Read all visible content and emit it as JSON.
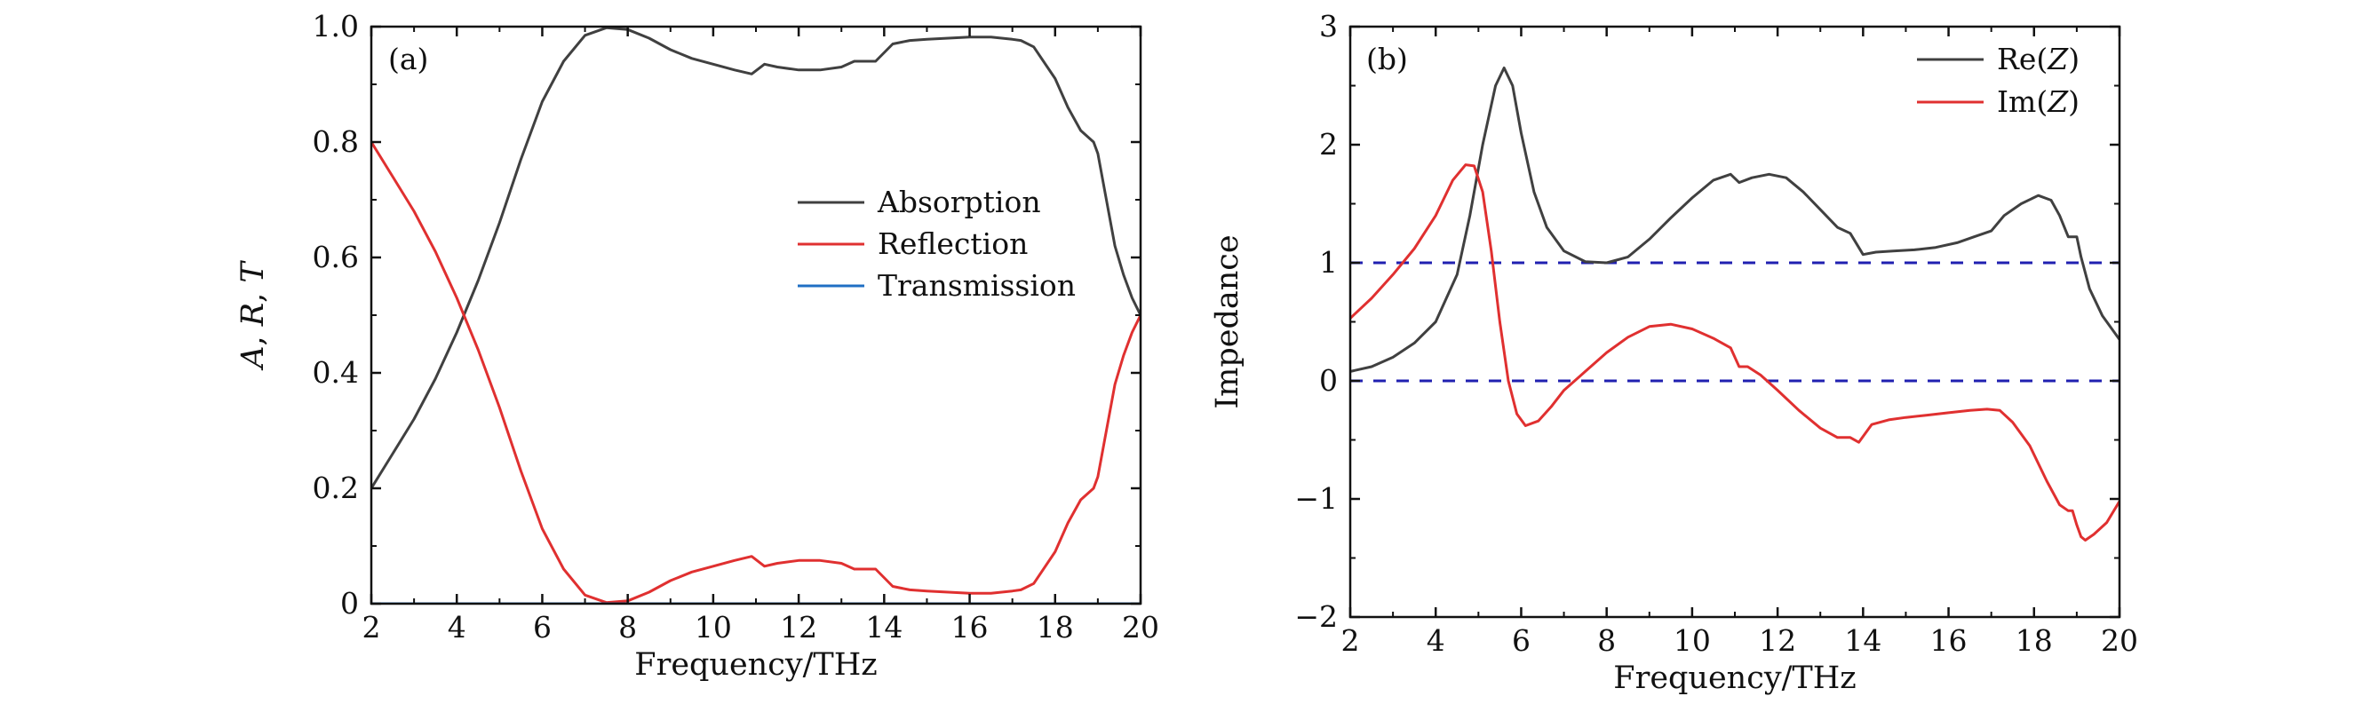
{
  "chart_data": [
    {
      "type": "line",
      "panel_label": "(a)",
      "xlabel": "Frequency/THz",
      "ylabel": "A, R, T",
      "xlim": [
        2,
        20
      ],
      "ylim": [
        0,
        1
      ],
      "xticks": [
        2,
        4,
        6,
        8,
        10,
        12,
        14,
        16,
        18,
        20
      ],
      "yticks": [
        0,
        0.2,
        0.4,
        0.6,
        0.8,
        1.0
      ],
      "ytick_labels": [
        "0",
        "0.2",
        "0.4",
        "0.6",
        "0.8",
        "1.0"
      ],
      "legend_position": "center-right",
      "series": [
        {
          "name": "Absorption",
          "color": "#404040",
          "x": [
            2,
            2.5,
            3,
            3.5,
            4,
            4.5,
            5,
            5.5,
            6,
            6.5,
            7,
            7.5,
            8,
            8.5,
            9,
            9.5,
            10,
            10.5,
            10.9,
            11.2,
            11.5,
            12,
            12.5,
            13,
            13.3,
            13.6,
            13.8,
            14.2,
            14.6,
            15,
            15.5,
            16,
            16.5,
            17,
            17.2,
            17.5,
            18,
            18.3,
            18.6,
            18.9,
            19.0,
            19.2,
            19.4,
            19.6,
            19.8,
            20
          ],
          "y": [
            0.2,
            0.26,
            0.32,
            0.39,
            0.47,
            0.56,
            0.66,
            0.77,
            0.87,
            0.94,
            0.985,
            0.998,
            0.995,
            0.98,
            0.96,
            0.945,
            0.935,
            0.925,
            0.918,
            0.935,
            0.93,
            0.925,
            0.925,
            0.93,
            0.94,
            0.94,
            0.94,
            0.97,
            0.976,
            0.978,
            0.98,
            0.982,
            0.982,
            0.978,
            0.976,
            0.965,
            0.91,
            0.86,
            0.82,
            0.8,
            0.78,
            0.7,
            0.62,
            0.57,
            0.53,
            0.5
          ]
        },
        {
          "name": "Reflection",
          "color": "#e03030",
          "x": [
            2,
            2.5,
            3,
            3.5,
            4,
            4.5,
            5,
            5.5,
            6,
            6.5,
            7,
            7.5,
            8,
            8.5,
            9,
            9.5,
            10,
            10.5,
            10.9,
            11.2,
            11.5,
            12,
            12.5,
            13,
            13.3,
            13.6,
            13.8,
            14.2,
            14.6,
            15,
            15.5,
            16,
            16.5,
            17,
            17.2,
            17.5,
            18,
            18.3,
            18.6,
            18.9,
            19.0,
            19.2,
            19.4,
            19.6,
            19.8,
            20
          ],
          "y": [
            0.8,
            0.74,
            0.68,
            0.61,
            0.53,
            0.44,
            0.34,
            0.23,
            0.13,
            0.06,
            0.015,
            0.002,
            0.005,
            0.02,
            0.04,
            0.055,
            0.065,
            0.075,
            0.082,
            0.065,
            0.07,
            0.075,
            0.075,
            0.07,
            0.06,
            0.06,
            0.06,
            0.03,
            0.024,
            0.022,
            0.02,
            0.018,
            0.018,
            0.022,
            0.024,
            0.035,
            0.09,
            0.14,
            0.18,
            0.2,
            0.22,
            0.3,
            0.38,
            0.43,
            0.47,
            0.5
          ]
        },
        {
          "name": "Transmission",
          "color": "#1f6fc4",
          "x": [
            2,
            20
          ],
          "y": [
            0,
            0
          ]
        }
      ]
    },
    {
      "type": "line",
      "panel_label": "(b)",
      "xlabel": "Frequency/THz",
      "ylabel": "Impedance",
      "xlim": [
        2,
        20
      ],
      "ylim": [
        -2,
        3
      ],
      "xticks": [
        2,
        4,
        6,
        8,
        10,
        12,
        14,
        16,
        18,
        20
      ],
      "yticks": [
        -2,
        -1,
        0,
        1,
        2,
        3
      ],
      "ytick_labels": [
        "−2",
        "−1",
        "0",
        "1",
        "2",
        "3"
      ],
      "reference_lines": [
        1,
        0
      ],
      "reference_color": "#2020b0",
      "legend_position": "top-right",
      "series": [
        {
          "name": "Re(Z)",
          "legend_prefix": "Re(",
          "legend_var": "Z",
          "legend_suffix": ")",
          "color": "#404040",
          "x": [
            2,
            2.5,
            3,
            3.5,
            4,
            4.5,
            4.8,
            5.1,
            5.4,
            5.6,
            5.8,
            6.0,
            6.3,
            6.6,
            7.0,
            7.5,
            8.0,
            8.5,
            9.0,
            9.5,
            10.0,
            10.5,
            10.9,
            11.1,
            11.4,
            11.8,
            12.2,
            12.6,
            13.0,
            13.4,
            13.7,
            14.0,
            14.3,
            14.7,
            15.2,
            15.7,
            16.2,
            16.6,
            17.0,
            17.3,
            17.7,
            18.1,
            18.4,
            18.6,
            18.8,
            18.9,
            19.0,
            19.1,
            19.3,
            19.6,
            20
          ],
          "y": [
            0.08,
            0.12,
            0.2,
            0.32,
            0.5,
            0.9,
            1.4,
            2.0,
            2.5,
            2.65,
            2.5,
            2.1,
            1.6,
            1.3,
            1.1,
            1.01,
            1.0,
            1.05,
            1.2,
            1.38,
            1.55,
            1.7,
            1.75,
            1.68,
            1.72,
            1.75,
            1.72,
            1.6,
            1.45,
            1.3,
            1.25,
            1.07,
            1.09,
            1.1,
            1.11,
            1.13,
            1.17,
            1.22,
            1.27,
            1.4,
            1.5,
            1.57,
            1.53,
            1.4,
            1.22,
            1.22,
            1.22,
            1.05,
            0.78,
            0.55,
            0.35
          ]
        },
        {
          "name": "Im(Z)",
          "legend_prefix": "Im(",
          "legend_var": "Z",
          "legend_suffix": ")",
          "color": "#e03030",
          "x": [
            2,
            2.5,
            3,
            3.5,
            4,
            4.4,
            4.7,
            4.9,
            5.1,
            5.3,
            5.5,
            5.7,
            5.9,
            6.1,
            6.4,
            6.7,
            7.0,
            7.5,
            8.0,
            8.5,
            9.0,
            9.5,
            10.0,
            10.5,
            10.9,
            11.1,
            11.3,
            11.6,
            12.0,
            12.5,
            13.0,
            13.4,
            13.7,
            13.9,
            14.2,
            14.6,
            15.0,
            15.5,
            16.0,
            16.5,
            16.9,
            17.2,
            17.5,
            17.9,
            18.3,
            18.6,
            18.8,
            18.9,
            19.0,
            19.1,
            19.2,
            19.4,
            19.7,
            20
          ],
          "y": [
            0.53,
            0.7,
            0.9,
            1.12,
            1.4,
            1.7,
            1.83,
            1.82,
            1.6,
            1.1,
            0.5,
            0.0,
            -0.28,
            -0.38,
            -0.34,
            -0.22,
            -0.08,
            0.08,
            0.24,
            0.37,
            0.46,
            0.48,
            0.44,
            0.36,
            0.28,
            0.12,
            0.12,
            0.05,
            -0.08,
            -0.25,
            -0.4,
            -0.48,
            -0.48,
            -0.52,
            -0.37,
            -0.33,
            -0.31,
            -0.29,
            -0.27,
            -0.25,
            -0.24,
            -0.25,
            -0.35,
            -0.55,
            -0.85,
            -1.05,
            -1.1,
            -1.1,
            -1.22,
            -1.32,
            -1.35,
            -1.3,
            -1.2,
            -1.02
          ]
        }
      ]
    }
  ]
}
